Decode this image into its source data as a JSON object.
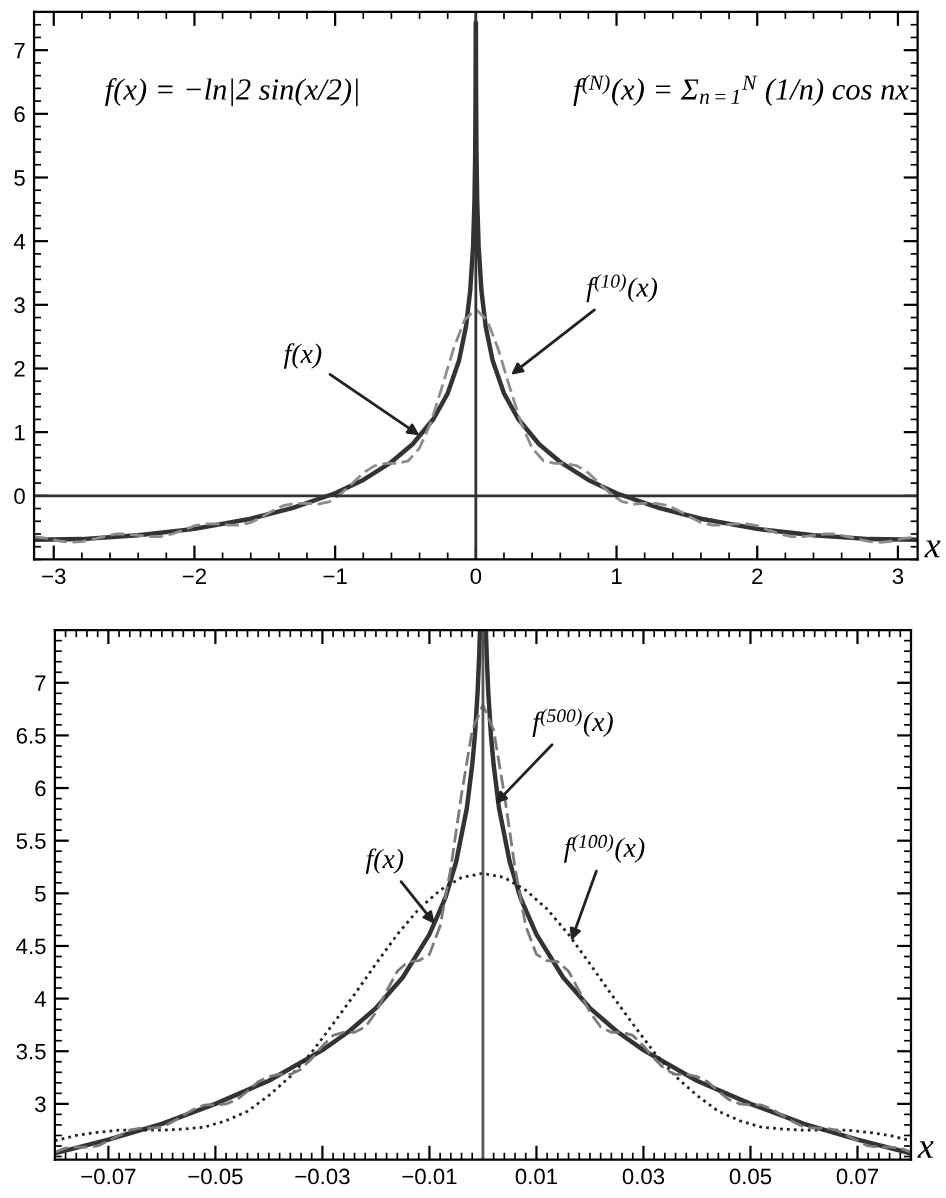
{
  "chart_data": [
    {
      "type": "line",
      "xlabel": "x",
      "annotations": [
        "f(x) = −ln|2 sin(x/2)|",
        "f$^{(N)}$(x) = Σ$_{n=1}$$^{N}$ (1/n) cos nx",
        {
          "text": "f(x)",
          "x": -0.4,
          "y": 0.95
        },
        {
          "text": "f$^{(10)}$(x)",
          "x": 0.25,
          "y": 1.9
        }
      ],
      "xlim": [
        -3.14,
        3.14
      ],
      "ylim": [
        -1,
        7.6
      ],
      "xticks": [
        {
          "value": -3,
          "label": "−3"
        },
        {
          "value": -2,
          "label": "−2"
        },
        {
          "value": -1,
          "label": "−1"
        },
        0,
        1,
        2,
        3
      ],
      "yticks": [
        0,
        1,
        2,
        3,
        4,
        5,
        6,
        7
      ],
      "ref_lines": [
        {
          "axis": "y",
          "value": 0,
          "color": "#333333"
        },
        {
          "axis": "x",
          "value": 0,
          "color": "#333333"
        }
      ],
      "series": [
        {
          "color": "#333333",
          "line_style": "solid",
          "x": [
            -3.14,
            -2.8,
            -2.4,
            -2.0,
            -1.6,
            -1.3,
            -1.0,
            -0.8,
            -0.6,
            -0.45,
            -0.3,
            -0.2,
            -0.12,
            -0.07,
            -0.04,
            -0.02,
            -0.01,
            -0.005,
            -0.002,
            -0.0006,
            0,
            0.0006,
            0.002,
            0.005,
            0.01,
            0.02,
            0.04,
            0.07,
            0.12,
            0.2,
            0.3,
            0.45,
            0.6,
            0.8,
            1.0,
            1.3,
            1.6,
            2.0,
            2.4,
            2.8,
            3.14
          ],
          "values": [
            -0.69,
            -0.68,
            -0.62,
            -0.52,
            -0.36,
            -0.19,
            0.04,
            0.25,
            0.53,
            0.81,
            1.21,
            1.61,
            2.12,
            2.66,
            3.22,
            3.91,
            4.61,
            5.3,
            6.22,
            7.42,
            null,
            7.42,
            6.22,
            5.3,
            4.61,
            3.91,
            3.22,
            2.66,
            2.12,
            1.61,
            1.21,
            0.81,
            0.53,
            0.25,
            0.04,
            -0.19,
            -0.36,
            -0.52,
            -0.62,
            -0.68,
            -0.69
          ]
        },
        {
          "color": "#8c8c8c",
          "line_style": "dashed",
          "x": [
            -3.14,
            -3.12,
            -3.04,
            -2.96,
            -2.88,
            -2.8,
            -2.72,
            -2.64,
            -2.56,
            -2.48,
            -2.4,
            -2.32,
            -2.24,
            -2.16,
            -2.08,
            -2.0,
            -1.92,
            -1.84,
            -1.76,
            -1.68,
            -1.6,
            -1.52,
            -1.44,
            -1.36,
            -1.28,
            -1.2,
            -1.12,
            -1.04,
            -0.96,
            -0.88,
            -0.8,
            -0.72,
            -0.64,
            -0.56,
            -0.48,
            -0.4,
            -0.32,
            -0.24,
            -0.16,
            -0.08,
            0,
            0.08,
            0.16,
            0.24,
            0.32,
            0.4,
            0.48,
            0.56,
            0.64,
            0.72,
            0.8,
            0.88,
            0.96,
            1.04,
            1.12,
            1.2,
            1.28,
            1.36,
            1.44,
            1.52,
            1.6,
            1.68,
            1.76,
            1.84,
            1.92,
            2.0,
            2.08,
            2.16,
            2.24,
            2.32,
            2.4,
            2.48,
            2.56,
            2.64,
            2.72,
            2.8,
            2.88,
            2.96,
            3.04,
            3.12,
            3.14
          ],
          "values": [
            -0.65,
            -0.65,
            -0.67,
            -0.71,
            -0.73,
            -0.72,
            -0.68,
            -0.64,
            -0.6,
            -0.6,
            -0.62,
            -0.64,
            -0.64,
            -0.6,
            -0.54,
            -0.47,
            -0.44,
            -0.44,
            -0.46,
            -0.46,
            -0.42,
            -0.33,
            -0.23,
            -0.15,
            -0.12,
            -0.12,
            -0.13,
            -0.09,
            0.03,
            0.19,
            0.36,
            0.47,
            0.51,
            0.51,
            0.55,
            0.75,
            1.15,
            1.71,
            2.3,
            2.76,
            2.93,
            2.76,
            2.3,
            1.71,
            1.15,
            0.75,
            0.55,
            0.51,
            0.51,
            0.47,
            0.36,
            0.19,
            0.03,
            -0.09,
            -0.13,
            -0.12,
            -0.12,
            -0.15,
            -0.23,
            -0.33,
            -0.42,
            -0.46,
            -0.46,
            -0.44,
            -0.44,
            -0.47,
            -0.54,
            -0.6,
            -0.64,
            -0.64,
            -0.62,
            -0.6,
            -0.6,
            -0.64,
            -0.68,
            -0.72,
            -0.73,
            -0.71,
            -0.67,
            -0.65,
            -0.65
          ]
        }
      ]
    },
    {
      "type": "line",
      "xlabel": "x",
      "annotations": [
        {
          "text": "f(x)",
          "x": -0.009,
          "y": 4.71
        },
        {
          "text": "f$^{(500)}$(x)",
          "x": 0.0023,
          "y": 5.85
        },
        {
          "text": "f$^{(100)}$(x)",
          "x": 0.0165,
          "y": 4.55
        }
      ],
      "xlim": [
        -0.08,
        0.08
      ],
      "ylim": [
        2.47,
        7.5
      ],
      "xticks": [
        {
          "value": -0.07,
          "label": "−0.07"
        },
        {
          "value": -0.05,
          "label": "−0.05"
        },
        {
          "value": -0.03,
          "label": "−0.03"
        },
        {
          "value": -0.01,
          "label": "−0.01"
        },
        0.01,
        0.03,
        0.05,
        0.07
      ],
      "yticks": [
        3,
        3.5,
        4,
        4.5,
        5,
        5.5,
        6,
        6.5,
        7
      ],
      "ref_lines": [
        {
          "axis": "x",
          "value": 0,
          "color": "#555555"
        }
      ],
      "series": [
        {
          "color": "#333333",
          "line_style": "solid",
          "x": [
            -0.08,
            -0.07,
            -0.06,
            -0.05,
            -0.04,
            -0.03,
            -0.025,
            -0.02,
            -0.015,
            -0.01,
            -0.007,
            -0.005,
            -0.003,
            -0.002,
            -0.0015,
            -0.001,
            -0.0007,
            -0.00056,
            0,
            0.00056,
            0.0007,
            0.001,
            0.0015,
            0.002,
            0.003,
            0.005,
            0.007,
            0.01,
            0.015,
            0.02,
            0.025,
            0.03,
            0.04,
            0.05,
            0.06,
            0.07,
            0.08
          ],
          "values": [
            2.53,
            2.66,
            2.81,
            3.0,
            3.22,
            3.51,
            3.69,
            3.91,
            4.2,
            4.61,
            4.96,
            5.3,
            5.81,
            6.22,
            6.5,
            6.91,
            7.26,
            7.49,
            null,
            7.49,
            7.26,
            6.91,
            6.5,
            6.22,
            5.81,
            5.3,
            4.96,
            4.61,
            4.2,
            3.91,
            3.69,
            3.51,
            3.22,
            3.0,
            2.81,
            2.66,
            2.53
          ]
        },
        {
          "color": "#222222",
          "line_style": "dotted",
          "x": [
            -0.08,
            -0.076,
            -0.072,
            -0.068,
            -0.064,
            -0.06,
            -0.056,
            -0.052,
            -0.048,
            -0.044,
            -0.04,
            -0.036,
            -0.032,
            -0.028,
            -0.024,
            -0.02,
            -0.016,
            -0.012,
            -0.008,
            -0.004,
            0,
            0.004,
            0.008,
            0.012,
            0.016,
            0.02,
            0.024,
            0.028,
            0.032,
            0.036,
            0.04,
            0.044,
            0.048,
            0.052,
            0.056,
            0.06,
            0.064,
            0.068,
            0.072,
            0.076,
            0.08
          ],
          "values": [
            2.65,
            2.7,
            2.73,
            2.75,
            2.75,
            2.75,
            2.76,
            2.78,
            2.84,
            2.93,
            3.08,
            3.26,
            3.49,
            3.76,
            4.04,
            4.33,
            4.61,
            4.85,
            5.03,
            5.15,
            5.19,
            5.15,
            5.03,
            4.85,
            4.61,
            4.33,
            4.04,
            3.76,
            3.49,
            3.26,
            3.08,
            2.93,
            2.84,
            2.78,
            2.76,
            2.75,
            2.75,
            2.75,
            2.73,
            2.7,
            2.65
          ]
        },
        {
          "color": "#7a7a7a",
          "line_style": "dashed",
          "x": [
            -0.08,
            -0.078,
            -0.076,
            -0.074,
            -0.072,
            -0.07,
            -0.068,
            -0.066,
            -0.064,
            -0.062,
            -0.06,
            -0.058,
            -0.056,
            -0.054,
            -0.052,
            -0.05,
            -0.048,
            -0.046,
            -0.044,
            -0.042,
            -0.04,
            -0.038,
            -0.036,
            -0.034,
            -0.032,
            -0.03,
            -0.028,
            -0.026,
            -0.024,
            -0.022,
            -0.02,
            -0.018,
            -0.016,
            -0.014,
            -0.012,
            -0.01,
            -0.008,
            -0.006,
            -0.004,
            -0.002,
            0,
            0.002,
            0.004,
            0.006,
            0.008,
            0.01,
            0.012,
            0.014,
            0.016,
            0.018,
            0.02,
            0.022,
            0.024,
            0.026,
            0.028,
            0.03,
            0.032,
            0.034,
            0.036,
            0.038,
            0.04,
            0.042,
            0.044,
            0.046,
            0.048,
            0.05,
            0.052,
            0.054,
            0.056,
            0.058,
            0.06,
            0.062,
            0.064,
            0.066,
            0.068,
            0.07,
            0.072,
            0.074,
            0.076,
            0.078,
            0.08
          ],
          "values": [
            2.54,
            2.58,
            2.59,
            2.59,
            2.6,
            2.65,
            2.7,
            2.75,
            2.77,
            2.77,
            2.78,
            2.83,
            2.89,
            2.95,
            2.99,
            2.99,
            3.0,
            3.04,
            3.12,
            3.21,
            3.26,
            3.28,
            3.28,
            3.33,
            3.43,
            3.55,
            3.65,
            3.68,
            3.68,
            3.73,
            3.87,
            4.07,
            4.26,
            4.35,
            4.36,
            4.42,
            4.69,
            5.24,
            5.94,
            6.55,
            6.79,
            6.55,
            5.94,
            5.24,
            4.69,
            4.42,
            4.36,
            4.35,
            4.26,
            4.07,
            3.87,
            3.73,
            3.68,
            3.68,
            3.65,
            3.55,
            3.43,
            3.33,
            3.28,
            3.28,
            3.26,
            3.21,
            3.12,
            3.04,
            3.0,
            2.99,
            2.99,
            2.95,
            2.89,
            2.83,
            2.78,
            2.77,
            2.77,
            2.75,
            2.7,
            2.65,
            2.6,
            2.59,
            2.59,
            2.58,
            2.54
          ]
        }
      ]
    }
  ]
}
